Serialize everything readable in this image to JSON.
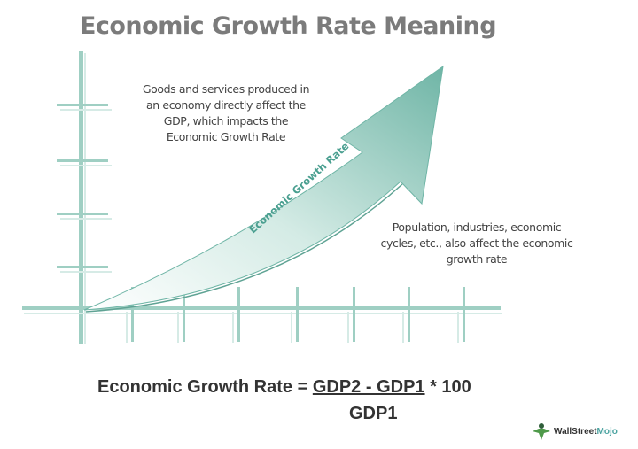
{
  "title": "Economic Growth Rate Meaning",
  "notes": {
    "top": [
      "Goods and services produced in",
      "an economy directly affect the",
      "GDP, which impacts the",
      "Economic Growth Rate"
    ],
    "right": [
      "Population, industries, economic",
      "cycles, etc., also affect the economic",
      "growth rate"
    ]
  },
  "arrow_label": "Economic Growth Rate",
  "formula": {
    "lhs": "Economic Growth Rate = ",
    "numerator": "GDP2 - GDP1",
    "multiplier": " * 100",
    "denominator": "GDP1"
  },
  "logo": {
    "text_a": "WallStreet",
    "text_b": "Mojo"
  },
  "colors": {
    "teal": "#6fb5a6",
    "axis": "#9fcfc3",
    "title": "#7b7b7b"
  }
}
